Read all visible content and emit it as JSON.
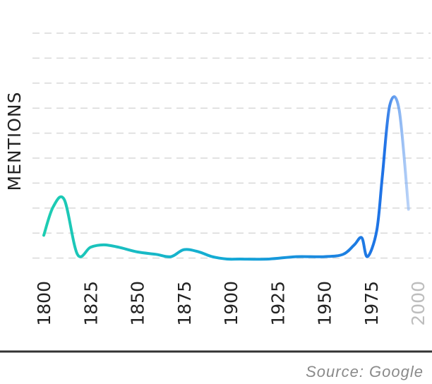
{
  "chart_data": {
    "type": "line",
    "title": "",
    "ylabel": "MENTIONS",
    "xlabel": "",
    "x_ticks": [
      "1800",
      "1825",
      "1850",
      "1875",
      "1900",
      "1925",
      "1950",
      "1975",
      "2000"
    ],
    "faded_ticks": [
      "2000"
    ],
    "xlim": [
      1800,
      2000
    ],
    "ylim": [
      0,
      9.5
    ],
    "grid": "horizontal dashed",
    "series": [
      {
        "x": [
          1800,
          1805,
          1811,
          1818,
          1825,
          1832,
          1840,
          1850,
          1860,
          1868,
          1875,
          1883,
          1890,
          1898,
          1905,
          1920,
          1935,
          1950,
          1960,
          1966,
          1970,
          1973,
          1978,
          1981,
          1985,
          1990,
          1995
        ],
        "y": [
          1.0,
          2.2,
          2.5,
          0.2,
          0.5,
          0.6,
          0.5,
          0.3,
          0.2,
          0.1,
          0.4,
          0.3,
          0.1,
          0.0,
          0.0,
          0.0,
          0.1,
          0.1,
          0.2,
          0.6,
          0.9,
          0.1,
          1.2,
          3.5,
          6.5,
          6.3,
          2.1
        ]
      }
    ],
    "colors": {
      "line_start": "#1ecfb0",
      "line_mid": "#13a9d6",
      "line_end": "#1f72e6",
      "line_fade": "#cfe0fb"
    }
  },
  "source": "Source: Google"
}
